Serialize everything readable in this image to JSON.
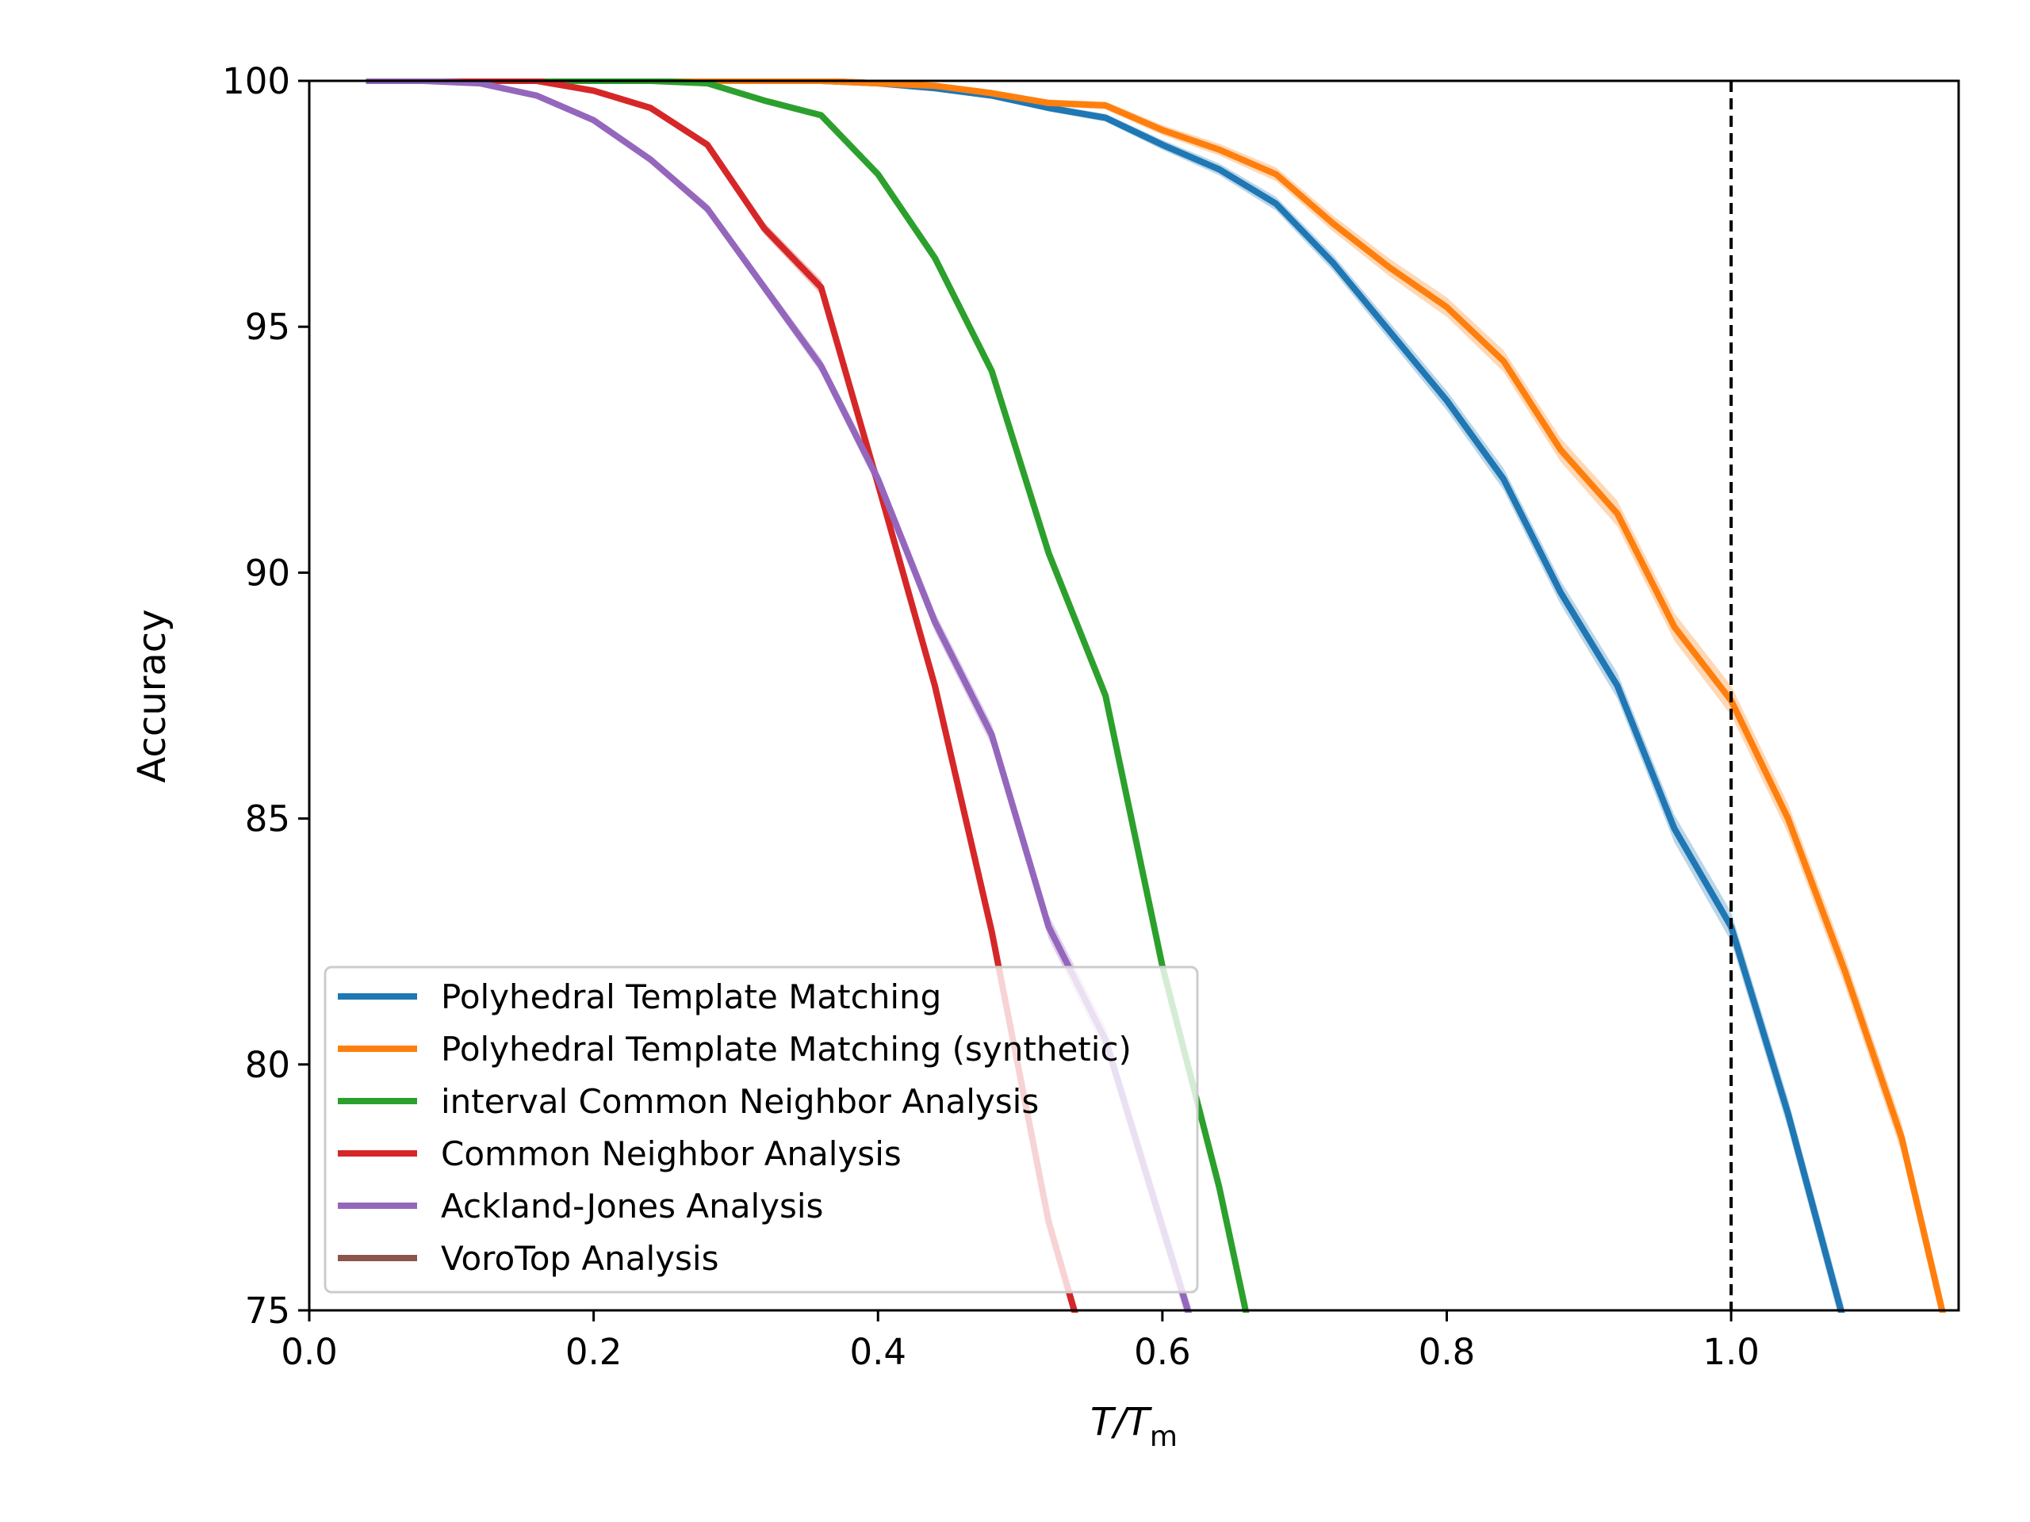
{
  "chart_data": {
    "type": "line",
    "xlabel": {
      "main": "T/T",
      "sub": "m"
    },
    "ylabel": "Accuracy",
    "xlim": [
      0.0,
      1.16
    ],
    "ylim": [
      75,
      100
    ],
    "xticks": [
      "0.0",
      "0.2",
      "0.4",
      "0.6",
      "0.8",
      "1.0"
    ],
    "xtick_values": [
      0.0,
      0.2,
      0.4,
      0.6,
      0.8,
      1.0
    ],
    "yticks": [
      "75",
      "80",
      "85",
      "90",
      "95",
      "100"
    ],
    "ytick_values": [
      75,
      80,
      85,
      90,
      95,
      100
    ],
    "grid": false,
    "legend_position": "lower-left",
    "reference_line": {
      "x": 1.0,
      "style": "dashed",
      "color": "#000000"
    },
    "series": [
      {
        "name": "Polyhedral Template Matching",
        "color": "#1f77b4",
        "x": [
          0.04,
          0.08,
          0.12,
          0.16,
          0.2,
          0.24,
          0.28,
          0.32,
          0.36,
          0.4,
          0.44,
          0.48,
          0.52,
          0.56,
          0.6,
          0.64,
          0.68,
          0.72,
          0.76,
          0.8,
          0.84,
          0.88,
          0.92,
          0.96,
          1.0,
          1.04,
          1.08
        ],
        "y": [
          100,
          100,
          100,
          100,
          100,
          100,
          100,
          100,
          100,
          99.95,
          99.85,
          99.7,
          99.45,
          99.25,
          98.7,
          98.2,
          97.5,
          96.3,
          94.9,
          93.5,
          91.9,
          89.6,
          87.7,
          84.8,
          82.8,
          79.0,
          74.7
        ],
        "band": [
          0,
          0,
          0,
          0,
          0,
          0,
          0,
          0,
          0,
          0.02,
          0.03,
          0.05,
          0.07,
          0.08,
          0.1,
          0.12,
          0.14,
          0.16,
          0.18,
          0.2,
          0.22,
          0.24,
          0.26,
          0.28,
          0.3,
          0.3,
          0.3
        ]
      },
      {
        "name": "Polyhedral Template Matching (synthetic)",
        "color": "#ff7f0e",
        "x": [
          0.04,
          0.08,
          0.12,
          0.16,
          0.2,
          0.24,
          0.28,
          0.32,
          0.36,
          0.4,
          0.44,
          0.48,
          0.52,
          0.56,
          0.6,
          0.64,
          0.68,
          0.72,
          0.76,
          0.8,
          0.84,
          0.88,
          0.92,
          0.96,
          1.0,
          1.04,
          1.08,
          1.12,
          1.15
        ],
        "y": [
          100,
          100,
          100,
          100,
          100,
          100,
          100,
          100,
          100,
          99.95,
          99.9,
          99.75,
          99.55,
          99.5,
          99.0,
          98.6,
          98.1,
          97.1,
          96.2,
          95.4,
          94.3,
          92.5,
          91.2,
          88.9,
          87.4,
          85.0,
          81.9,
          78.5,
          74.8
        ],
        "band": [
          0,
          0,
          0,
          0,
          0,
          0,
          0,
          0,
          0,
          0.02,
          0.03,
          0.05,
          0.07,
          0.08,
          0.1,
          0.12,
          0.14,
          0.16,
          0.18,
          0.2,
          0.22,
          0.24,
          0.26,
          0.28,
          0.3,
          0.3,
          0.3,
          0.3,
          0.3
        ]
      },
      {
        "name": "interval Common Neighbor Analysis",
        "color": "#2ca02c",
        "x": [
          0.04,
          0.08,
          0.12,
          0.16,
          0.2,
          0.24,
          0.28,
          0.32,
          0.36,
          0.4,
          0.44,
          0.48,
          0.52,
          0.56,
          0.6,
          0.64,
          0.66
        ],
        "y": [
          100,
          100,
          100,
          100,
          100,
          100,
          99.95,
          99.6,
          99.3,
          98.1,
          96.4,
          94.1,
          90.4,
          87.5,
          82.0,
          77.5,
          74.8
        ],
        "band": [
          0,
          0,
          0,
          0,
          0,
          0,
          0.02,
          0.04,
          0.06,
          0.08,
          0.1,
          0.12,
          0.15,
          0.18,
          0.2,
          0.22,
          0.22
        ]
      },
      {
        "name": "Common Neighbor Analysis",
        "color": "#d62728",
        "x": [
          0.04,
          0.08,
          0.12,
          0.16,
          0.2,
          0.24,
          0.28,
          0.32,
          0.36,
          0.4,
          0.44,
          0.48,
          0.52,
          0.54
        ],
        "y": [
          100,
          100,
          100,
          100,
          99.8,
          99.45,
          98.7,
          97.0,
          95.8,
          91.8,
          87.7,
          82.7,
          76.8,
          74.8
        ],
        "band": [
          0,
          0,
          0,
          0,
          0.04,
          0.06,
          0.08,
          0.12,
          0.15,
          0.18,
          0.2,
          0.22,
          0.24,
          0.24
        ]
      },
      {
        "name": "Ackland-Jones Analysis",
        "color": "#9467bd",
        "x": [
          0.04,
          0.08,
          0.12,
          0.16,
          0.2,
          0.24,
          0.28,
          0.32,
          0.36,
          0.4,
          0.44,
          0.48,
          0.52,
          0.56,
          0.6,
          0.62
        ],
        "y": [
          100,
          100,
          99.95,
          99.7,
          99.2,
          98.4,
          97.4,
          95.8,
          94.2,
          91.9,
          89.0,
          86.7,
          82.8,
          80.5,
          76.7,
          74.8
        ],
        "band": [
          0,
          0,
          0.02,
          0.04,
          0.06,
          0.08,
          0.1,
          0.12,
          0.15,
          0.18,
          0.2,
          0.22,
          0.24,
          0.26,
          0.28,
          0.28
        ]
      },
      {
        "name": "VoroTop Analysis",
        "color": "#8c564b",
        "x": [],
        "y": [],
        "band": []
      }
    ]
  }
}
